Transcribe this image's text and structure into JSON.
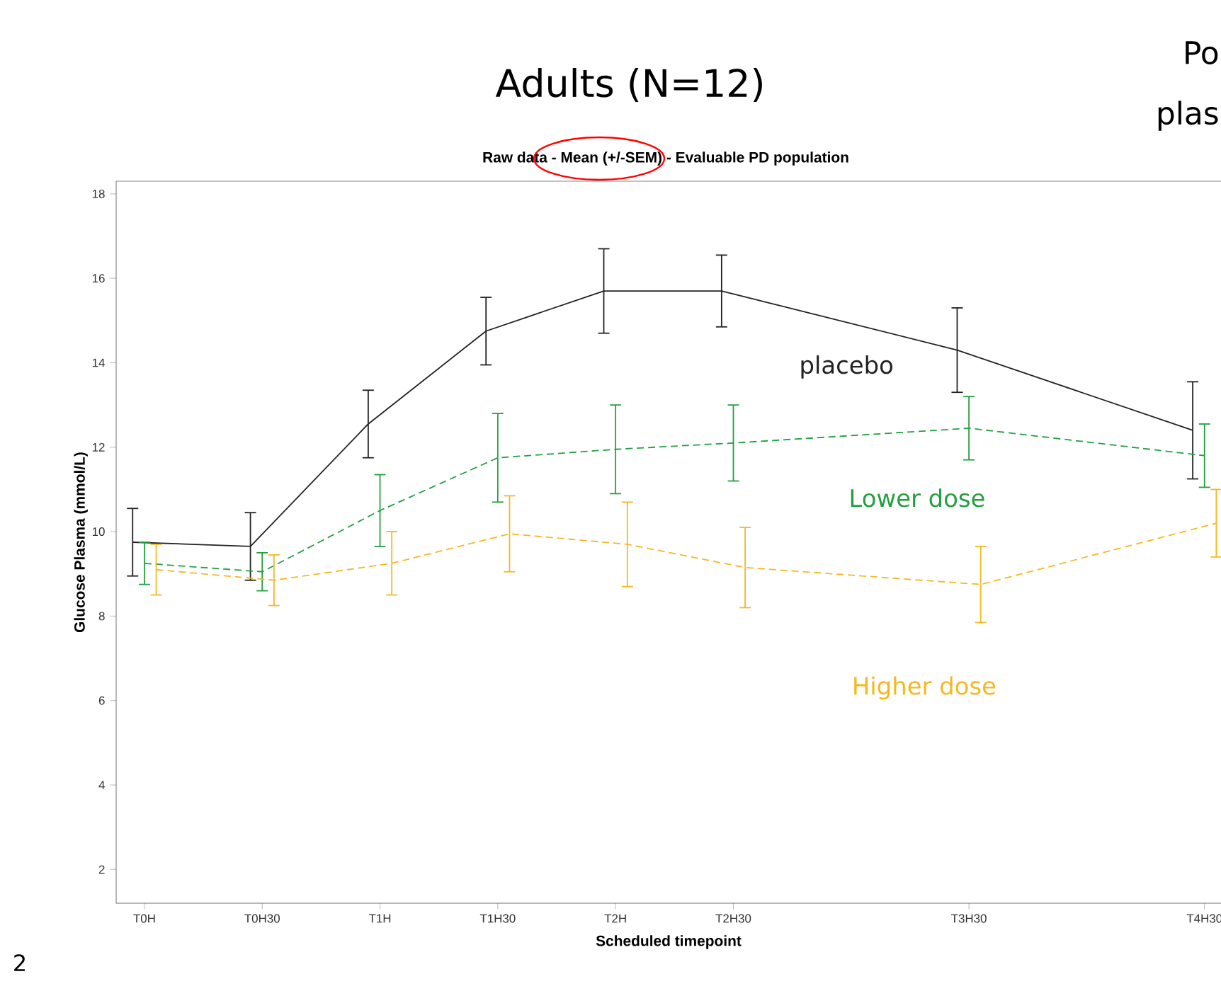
{
  "chart_data": {
    "type": "line",
    "title": "Adults (N=12)",
    "subtitle": "Raw data - Mean (+/-SEM) - Evaluable PD population",
    "xlabel": "Scheduled timepoint",
    "ylabel": "Glucose Plasma (mmol/L)",
    "categories": [
      "T0H",
      "T0H30",
      "T1H",
      "T1H30",
      "T2H",
      "T2H30",
      null,
      "T3H30",
      null,
      "T4H30"
    ],
    "ylim": [
      1.2,
      18.3
    ],
    "yticks": [
      2,
      4,
      6,
      8,
      10,
      12,
      14,
      16,
      18
    ],
    "grid": false,
    "legend": false,
    "marker": "none",
    "series": [
      {
        "name": "placebo",
        "color": "#222222",
        "line_style": "solid",
        "values": [
          9.75,
          9.65,
          12.55,
          14.75,
          15.7,
          15.7,
          null,
          14.3,
          null,
          12.4
        ],
        "errors": [
          0.8,
          0.8,
          0.8,
          0.8,
          1.0,
          0.85,
          null,
          1.0,
          null,
          1.15
        ]
      },
      {
        "name": "Lower dose",
        "color": "#22a040",
        "line_style": "dashed",
        "values": [
          9.25,
          9.05,
          10.5,
          11.75,
          11.95,
          12.1,
          null,
          12.45,
          null,
          11.8
        ],
        "errors": [
          0.5,
          0.45,
          0.85,
          1.05,
          1.05,
          0.9,
          null,
          0.75,
          null,
          0.75
        ]
      },
      {
        "name": "Higher dose",
        "color": "#f5b820",
        "line_style": "dashed",
        "values": [
          9.1,
          8.85,
          9.25,
          9.95,
          9.7,
          9.15,
          null,
          8.75,
          null,
          10.2
        ],
        "errors": [
          0.6,
          0.6,
          0.75,
          0.9,
          1.0,
          0.95,
          null,
          0.9,
          null,
          0.8
        ]
      }
    ],
    "annotations": [
      "Po",
      "plas",
      "2"
    ]
  }
}
